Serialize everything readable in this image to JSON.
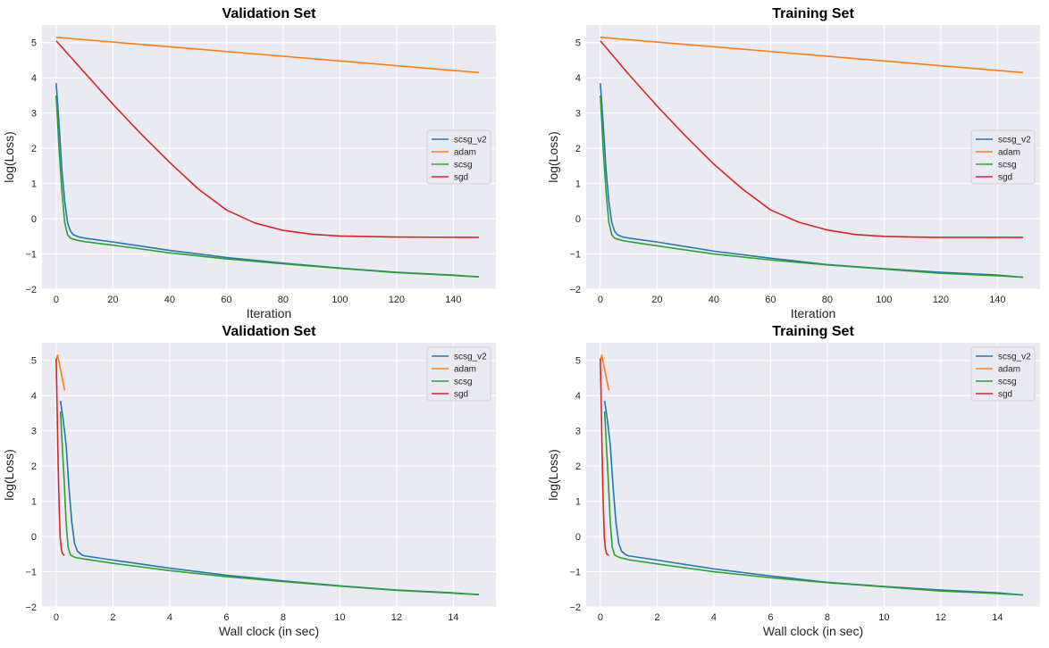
{
  "colors": {
    "scsg_v2": "#1f77b4",
    "adam": "#ff7f0e",
    "scsg": "#2ca02c",
    "sgd": "#d62728",
    "axes_bg": "#eaeaf2",
    "grid": "#ffffff",
    "tick_text": "#262626"
  },
  "chart_data": [
    {
      "type": "line",
      "title": "Validation Set",
      "xlabel": "Iteration",
      "ylabel": "log(Loss)",
      "xlim": [
        -5,
        155
      ],
      "ylim": [
        -2,
        5.5
      ],
      "xticks": [
        0,
        20,
        40,
        60,
        80,
        100,
        120,
        140
      ],
      "yticks": [
        -2,
        -1,
        0,
        1,
        2,
        3,
        4,
        5
      ],
      "grid": true,
      "legend_position": "center-right",
      "series": [
        {
          "name": "scsg_v2",
          "color": "#1f77b4",
          "x": [
            0,
            1,
            2,
            3,
            4,
            5,
            6,
            8,
            10,
            20,
            40,
            60,
            80,
            100,
            120,
            140,
            149
          ],
          "y": [
            3.85,
            2.7,
            1.4,
            0.5,
            -0.1,
            -0.35,
            -0.45,
            -0.52,
            -0.55,
            -0.66,
            -0.9,
            -1.1,
            -1.26,
            -1.4,
            -1.52,
            -1.6,
            -1.65
          ]
        },
        {
          "name": "adam",
          "color": "#ff7f0e",
          "x": [
            0,
            149
          ],
          "y": [
            5.15,
            4.15
          ]
        },
        {
          "name": "scsg",
          "color": "#2ca02c",
          "x": [
            0,
            1,
            2,
            3,
            4,
            5,
            6,
            8,
            10,
            20,
            40,
            60,
            80,
            100,
            120,
            140,
            149
          ],
          "y": [
            3.5,
            2.0,
            0.8,
            -0.1,
            -0.45,
            -0.55,
            -0.58,
            -0.62,
            -0.65,
            -0.75,
            -0.97,
            -1.14,
            -1.28,
            -1.41,
            -1.53,
            -1.61,
            -1.65
          ]
        },
        {
          "name": "sgd",
          "color": "#d62728",
          "x": [
            0,
            10,
            20,
            30,
            40,
            50,
            60,
            70,
            80,
            90,
            100,
            120,
            149
          ],
          "y": [
            5.05,
            4.15,
            3.25,
            2.4,
            1.6,
            0.85,
            0.25,
            -0.12,
            -0.33,
            -0.44,
            -0.49,
            -0.52,
            -0.53
          ]
        }
      ]
    },
    {
      "type": "line",
      "title": "Training Set",
      "xlabel": "Iteration",
      "ylabel": "log(Loss)",
      "xlim": [
        -5,
        155
      ],
      "ylim": [
        -2,
        5.5
      ],
      "xticks": [
        0,
        20,
        40,
        60,
        80,
        100,
        120,
        140
      ],
      "yticks": [
        -2,
        -1,
        0,
        1,
        2,
        3,
        4,
        5
      ],
      "grid": true,
      "legend_position": "center-right",
      "series": [
        {
          "name": "scsg_v2",
          "color": "#1f77b4",
          "x": [
            0,
            1,
            2,
            3,
            4,
            5,
            6,
            8,
            10,
            20,
            40,
            60,
            80,
            100,
            120,
            140,
            149
          ],
          "y": [
            3.85,
            2.7,
            1.4,
            0.5,
            -0.1,
            -0.35,
            -0.45,
            -0.52,
            -0.55,
            -0.66,
            -0.92,
            -1.12,
            -1.3,
            -1.42,
            -1.52,
            -1.6,
            -1.66
          ]
        },
        {
          "name": "adam",
          "color": "#ff7f0e",
          "x": [
            0,
            149
          ],
          "y": [
            5.15,
            4.15
          ]
        },
        {
          "name": "scsg",
          "color": "#2ca02c",
          "x": [
            0,
            1,
            2,
            3,
            4,
            5,
            6,
            8,
            10,
            20,
            40,
            60,
            80,
            100,
            120,
            140,
            149
          ],
          "y": [
            3.5,
            2.0,
            0.8,
            -0.1,
            -0.45,
            -0.55,
            -0.58,
            -0.62,
            -0.65,
            -0.77,
            -1.0,
            -1.17,
            -1.31,
            -1.43,
            -1.55,
            -1.62,
            -1.66
          ]
        },
        {
          "name": "sgd",
          "color": "#d62728",
          "x": [
            0,
            10,
            20,
            30,
            40,
            50,
            60,
            70,
            80,
            90,
            100,
            110,
            120,
            130,
            140,
            149
          ],
          "y": [
            5.05,
            4.1,
            3.2,
            2.35,
            1.55,
            0.85,
            0.25,
            -0.1,
            -0.32,
            -0.45,
            -0.5,
            -0.52,
            -0.53,
            -0.53,
            -0.53,
            -0.53
          ]
        }
      ]
    },
    {
      "type": "line",
      "title": "Validation Set",
      "xlabel": "Wall clock (in sec)",
      "ylabel": "log(Loss)",
      "xlim": [
        -0.5,
        15.5
      ],
      "ylim": [
        -2,
        5.5
      ],
      "xticks": [
        0,
        2,
        4,
        6,
        8,
        10,
        12,
        14
      ],
      "yticks": [
        -2,
        -1,
        0,
        1,
        2,
        3,
        4,
        5
      ],
      "grid": true,
      "legend_position": "top-right",
      "series": [
        {
          "name": "scsg_v2",
          "color": "#1f77b4",
          "x": [
            0.15,
            0.25,
            0.35,
            0.45,
            0.55,
            0.65,
            0.75,
            0.9,
            1.0,
            2.0,
            4.0,
            6.0,
            8.0,
            10.0,
            12.0,
            14.0,
            14.9
          ],
          "y": [
            3.85,
            3.3,
            2.6,
            1.4,
            0.4,
            -0.2,
            -0.42,
            -0.52,
            -0.55,
            -0.67,
            -0.9,
            -1.1,
            -1.26,
            -1.4,
            -1.52,
            -1.6,
            -1.65
          ]
        },
        {
          "name": "adam",
          "color": "#ff7f0e",
          "x": [
            0.0,
            0.05,
            0.3
          ],
          "y": [
            5.0,
            5.15,
            4.15
          ]
        },
        {
          "name": "scsg",
          "color": "#2ca02c",
          "x": [
            0.15,
            0.2,
            0.28,
            0.35,
            0.42,
            0.5,
            0.6,
            0.7,
            1.0,
            2.0,
            4.0,
            6.0,
            8.0,
            10.0,
            12.0,
            14.0,
            14.9
          ],
          "y": [
            3.55,
            2.8,
            1.6,
            0.4,
            -0.3,
            -0.52,
            -0.57,
            -0.6,
            -0.64,
            -0.76,
            -0.97,
            -1.14,
            -1.28,
            -1.41,
            -1.53,
            -1.61,
            -1.65
          ]
        },
        {
          "name": "sgd",
          "color": "#d62728",
          "x": [
            0.0,
            0.03,
            0.06,
            0.1,
            0.14,
            0.18,
            0.22,
            0.26,
            0.3
          ],
          "y": [
            5.05,
            3.8,
            2.4,
            1.0,
            0.0,
            -0.35,
            -0.48,
            -0.52,
            -0.53
          ]
        }
      ]
    },
    {
      "type": "line",
      "title": "Training Set",
      "xlabel": "Wall clock (in sec)",
      "ylabel": "log(Loss)",
      "xlim": [
        -0.5,
        15.5
      ],
      "ylim": [
        -2,
        5.5
      ],
      "xticks": [
        0,
        2,
        4,
        6,
        8,
        10,
        12,
        14
      ],
      "yticks": [
        -2,
        -1,
        0,
        1,
        2,
        3,
        4,
        5
      ],
      "grid": true,
      "legend_position": "top-right",
      "series": [
        {
          "name": "scsg_v2",
          "color": "#1f77b4",
          "x": [
            0.15,
            0.25,
            0.35,
            0.45,
            0.55,
            0.65,
            0.75,
            0.9,
            1.0,
            2.0,
            4.0,
            6.0,
            8.0,
            10.0,
            12.0,
            14.0,
            14.9
          ],
          "y": [
            3.85,
            3.3,
            2.6,
            1.4,
            0.4,
            -0.2,
            -0.42,
            -0.52,
            -0.55,
            -0.67,
            -0.92,
            -1.12,
            -1.3,
            -1.42,
            -1.52,
            -1.6,
            -1.66
          ]
        },
        {
          "name": "adam",
          "color": "#ff7f0e",
          "x": [
            0.0,
            0.05,
            0.3
          ],
          "y": [
            5.0,
            5.15,
            4.15
          ]
        },
        {
          "name": "scsg",
          "color": "#2ca02c",
          "x": [
            0.15,
            0.2,
            0.28,
            0.35,
            0.42,
            0.5,
            0.6,
            0.7,
            1.0,
            2.0,
            4.0,
            6.0,
            8.0,
            10.0,
            12.0,
            14.0,
            14.9
          ],
          "y": [
            3.55,
            2.8,
            1.6,
            0.4,
            -0.3,
            -0.52,
            -0.57,
            -0.6,
            -0.66,
            -0.78,
            -1.0,
            -1.17,
            -1.31,
            -1.43,
            -1.55,
            -1.62,
            -1.66
          ]
        },
        {
          "name": "sgd",
          "color": "#d62728",
          "x": [
            0.0,
            0.03,
            0.06,
            0.1,
            0.14,
            0.18,
            0.22,
            0.26,
            0.3
          ],
          "y": [
            5.05,
            3.8,
            2.4,
            1.0,
            0.0,
            -0.35,
            -0.48,
            -0.52,
            -0.53
          ]
        }
      ]
    }
  ]
}
